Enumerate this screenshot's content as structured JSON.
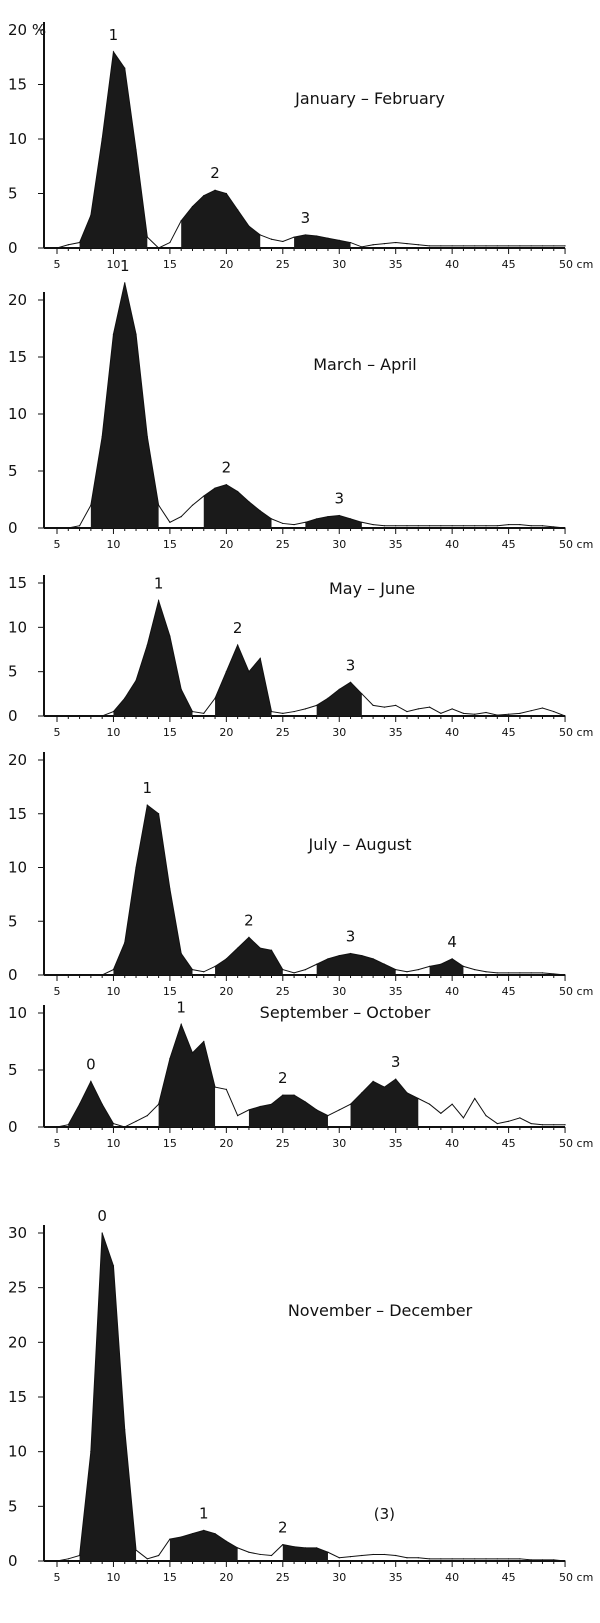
{
  "chart_data": [
    {
      "type": "area",
      "title": "January – February",
      "ylabel_unit": "%",
      "xlabel_unit": "cm",
      "xlim": [
        5,
        50
      ],
      "ylim": [
        0,
        20
      ],
      "x_ticks": [
        "5",
        "10",
        "15",
        "20",
        "25",
        "30",
        "35",
        "40",
        "45",
        "50 cm"
      ],
      "y_ticks": [
        "0",
        "5",
        "10",
        "15",
        "20 %"
      ],
      "x": [
        5,
        6,
        7,
        8,
        9,
        10,
        11,
        12,
        13,
        14,
        15,
        16,
        17,
        18,
        19,
        20,
        21,
        22,
        23,
        24,
        25,
        26,
        27,
        28,
        29,
        30,
        31,
        32,
        33,
        34,
        35,
        36,
        37,
        38,
        39,
        40,
        41,
        42,
        43,
        44,
        45,
        46,
        47,
        48,
        49,
        50
      ],
      "values": [
        0,
        0.3,
        0.5,
        3,
        10,
        18,
        16.5,
        9,
        1,
        0,
        0.5,
        2.5,
        3.8,
        4.8,
        5.3,
        5,
        3.5,
        2,
        1.2,
        0.8,
        0.6,
        1,
        1.2,
        1.1,
        0.9,
        0.7,
        0.5,
        0.1,
        0.3,
        0.4,
        0.5,
        0.4,
        0.3,
        0.2,
        0.2,
        0.2,
        0.2,
        0.2,
        0.2,
        0.2,
        0.2,
        0.2,
        0.2,
        0.2,
        0.2,
        0.2
      ],
      "cohorts": [
        {
          "label": "1",
          "from": 7,
          "to": 13
        },
        {
          "label": "2",
          "from": 16,
          "to": 23
        },
        {
          "label": "3",
          "from": 26,
          "to": 31
        }
      ]
    },
    {
      "type": "area",
      "title": "March – April",
      "xlim": [
        5,
        50
      ],
      "ylim": [
        0,
        20
      ],
      "x_ticks": [
        "5",
        "10",
        "15",
        "20",
        "25",
        "30",
        "35",
        "40",
        "45",
        "50 cm"
      ],
      "y_ticks": [
        "0",
        "5",
        "10",
        "15",
        "20"
      ],
      "x": [
        5,
        6,
        7,
        8,
        9,
        10,
        11,
        12,
        13,
        14,
        15,
        16,
        17,
        18,
        19,
        20,
        21,
        22,
        23,
        24,
        25,
        26,
        27,
        28,
        29,
        30,
        31,
        32,
        33,
        34,
        35,
        36,
        37,
        38,
        39,
        40,
        41,
        42,
        43,
        44,
        45,
        46,
        47,
        48,
        49,
        50
      ],
      "values": [
        0,
        0,
        0.2,
        2,
        8,
        17,
        21.5,
        17,
        8,
        2,
        0.5,
        1,
        2,
        2.8,
        3.5,
        3.8,
        3.2,
        2.3,
        1.5,
        0.8,
        0.4,
        0.3,
        0.5,
        0.8,
        1,
        1.1,
        0.8,
        0.5,
        0.3,
        0.2,
        0.2,
        0.2,
        0.2,
        0.2,
        0.2,
        0.2,
        0.2,
        0.2,
        0.2,
        0.2,
        0.3,
        0.3,
        0.2,
        0.2,
        0.1,
        0
      ],
      "cohorts": [
        {
          "label": "1",
          "from": 8,
          "to": 14
        },
        {
          "label": "2",
          "from": 18,
          "to": 24
        },
        {
          "label": "3",
          "from": 27,
          "to": 32
        }
      ]
    },
    {
      "type": "area",
      "title": "May – June",
      "xlim": [
        5,
        50
      ],
      "ylim": [
        0,
        15
      ],
      "x_ticks": [
        "5",
        "10",
        "15",
        "20",
        "25",
        "30",
        "35",
        "40",
        "45",
        "50 cm"
      ],
      "y_ticks": [
        "0",
        "5",
        "10",
        "15"
      ],
      "x": [
        5,
        6,
        7,
        8,
        9,
        10,
        11,
        12,
        13,
        14,
        15,
        16,
        17,
        18,
        19,
        20,
        21,
        22,
        23,
        24,
        25,
        26,
        27,
        28,
        29,
        30,
        31,
        32,
        33,
        34,
        35,
        36,
        37,
        38,
        39,
        40,
        41,
        42,
        43,
        44,
        45,
        46,
        47,
        48,
        49,
        50
      ],
      "values": [
        0,
        0,
        0,
        0,
        0,
        0.5,
        2,
        4,
        8,
        13,
        9,
        3,
        0.5,
        0.3,
        2,
        5,
        8,
        5,
        6.5,
        0.5,
        0.3,
        0.5,
        0.8,
        1.2,
        2,
        3,
        3.8,
        2.5,
        1.2,
        1,
        1.2,
        0.5,
        0.8,
        1,
        0.3,
        0.8,
        0.3,
        0.2,
        0.4,
        0.1,
        0.2,
        0.3,
        0.6,
        0.9,
        0.5,
        0
      ],
      "cohorts": [
        {
          "label": "1",
          "from": 10,
          "to": 17
        },
        {
          "label": "2",
          "from": 19,
          "to": 24
        },
        {
          "label": "3",
          "from": 28,
          "to": 32
        }
      ]
    },
    {
      "type": "area",
      "title": "July – August",
      "xlim": [
        5,
        50
      ],
      "ylim": [
        0,
        20
      ],
      "x_ticks": [
        "5",
        "10",
        "15",
        "20",
        "25",
        "30",
        "35",
        "40",
        "45",
        "50 cm"
      ],
      "y_ticks": [
        "0",
        "5",
        "10",
        "15",
        "20"
      ],
      "x": [
        5,
        6,
        7,
        8,
        9,
        10,
        11,
        12,
        13,
        14,
        15,
        16,
        17,
        18,
        19,
        20,
        21,
        22,
        23,
        24,
        25,
        26,
        27,
        28,
        29,
        30,
        31,
        32,
        33,
        34,
        35,
        36,
        37,
        38,
        39,
        40,
        41,
        42,
        43,
        44,
        45,
        46,
        47,
        48,
        49,
        50
      ],
      "values": [
        0,
        0,
        0,
        0,
        0,
        0.5,
        3,
        10,
        15.8,
        15,
        8,
        2,
        0.5,
        0.3,
        0.8,
        1.5,
        2.5,
        3.5,
        2.5,
        2.3,
        0.5,
        0.2,
        0.5,
        1,
        1.5,
        1.8,
        2,
        1.8,
        1.5,
        1,
        0.5,
        0.3,
        0.5,
        0.8,
        1,
        1.5,
        0.8,
        0.5,
        0.3,
        0.2,
        0.2,
        0.2,
        0.2,
        0.2,
        0.1,
        0
      ],
      "cohorts": [
        {
          "label": "1",
          "from": 10,
          "to": 17
        },
        {
          "label": "2",
          "from": 19,
          "to": 25
        },
        {
          "label": "3",
          "from": 28,
          "to": 35
        },
        {
          "label": "4",
          "from": 38,
          "to": 41
        }
      ]
    },
    {
      "type": "area",
      "title": "September – October",
      "xlim": [
        5,
        50
      ],
      "ylim": [
        0,
        10
      ],
      "x_ticks": [
        "5",
        "10",
        "15",
        "20",
        "25",
        "30",
        "35",
        "40",
        "45",
        "50 cm"
      ],
      "y_ticks": [
        "0",
        "5",
        "10"
      ],
      "x": [
        5,
        6,
        7,
        8,
        9,
        10,
        11,
        12,
        13,
        14,
        15,
        16,
        17,
        18,
        19,
        20,
        21,
        22,
        23,
        24,
        25,
        26,
        27,
        28,
        29,
        30,
        31,
        32,
        33,
        34,
        35,
        36,
        37,
        38,
        39,
        40,
        41,
        42,
        43,
        44,
        45,
        46,
        47,
        48,
        49,
        50
      ],
      "values": [
        0,
        0.2,
        2,
        4,
        2,
        0.3,
        0,
        0.5,
        1,
        2,
        6,
        9,
        6.5,
        7.5,
        3.5,
        3.3,
        1,
        1.5,
        1.8,
        2,
        2.8,
        2.8,
        2.2,
        1.5,
        1,
        1.5,
        2,
        3,
        4,
        3.5,
        4.2,
        3,
        2.5,
        2,
        1.2,
        2,
        0.8,
        2.5,
        1,
        0.3,
        0.5,
        0.8,
        0.3,
        0.2,
        0.2,
        0.2
      ],
      "cohorts": [
        {
          "label": "0",
          "from": 6,
          "to": 10
        },
        {
          "label": "1",
          "from": 14,
          "to": 19
        },
        {
          "label": "2",
          "from": 22,
          "to": 29
        },
        {
          "label": "3",
          "from": 31,
          "to": 37
        }
      ]
    },
    {
      "type": "area",
      "title": "November – December",
      "xlim": [
        5,
        50
      ],
      "ylim": [
        0,
        30
      ],
      "x_ticks": [
        "5",
        "10",
        "15",
        "20",
        "25",
        "30",
        "35",
        "40",
        "45",
        "50 cm"
      ],
      "y_ticks": [
        "0",
        "5",
        "10",
        "15",
        "20",
        "25",
        "30"
      ],
      "x": [
        5,
        6,
        7,
        8,
        9,
        10,
        11,
        12,
        13,
        14,
        15,
        16,
        17,
        18,
        19,
        20,
        21,
        22,
        23,
        24,
        25,
        26,
        27,
        28,
        29,
        30,
        31,
        32,
        33,
        34,
        35,
        36,
        37,
        38,
        39,
        40,
        41,
        42,
        43,
        44,
        45,
        46,
        47,
        48,
        49,
        50
      ],
      "values": [
        0,
        0.2,
        0.5,
        10,
        30,
        27,
        12,
        1,
        0.2,
        0.5,
        2,
        2.2,
        2.5,
        2.8,
        2.5,
        1.8,
        1.2,
        0.8,
        0.6,
        0.5,
        1.5,
        1.3,
        1.2,
        1.2,
        0.8,
        0.3,
        0.4,
        0.5,
        0.6,
        0.6,
        0.5,
        0.3,
        0.3,
        0.2,
        0.2,
        0.2,
        0.2,
        0.2,
        0.2,
        0.2,
        0.2,
        0.2,
        0.1,
        0.1,
        0.1,
        0
      ],
      "cohorts": [
        {
          "label": "0",
          "from": 7,
          "to": 12
        },
        {
          "label": "1",
          "from": 15,
          "to": 21
        },
        {
          "label": "2",
          "from": 25,
          "to": 29
        }
      ],
      "annotations": [
        {
          "label": "(3)",
          "x": 34
        }
      ]
    }
  ],
  "colors": {
    "fill": "#1a1a1a",
    "line": "#111111"
  }
}
